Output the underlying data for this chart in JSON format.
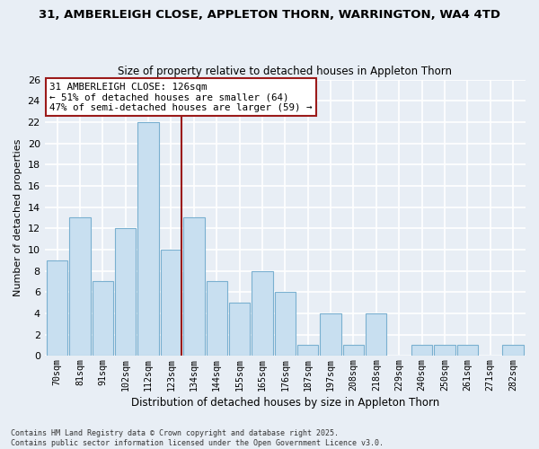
{
  "title1": "31, AMBERLEIGH CLOSE, APPLETON THORN, WARRINGTON, WA4 4TD",
  "title2": "Size of property relative to detached houses in Appleton Thorn",
  "xlabel": "Distribution of detached houses by size in Appleton Thorn",
  "ylabel": "Number of detached properties",
  "bar_color": "#c8dff0",
  "bar_edge_color": "#7ab0d0",
  "categories": [
    "70sqm",
    "81sqm",
    "91sqm",
    "102sqm",
    "112sqm",
    "123sqm",
    "134sqm",
    "144sqm",
    "155sqm",
    "165sqm",
    "176sqm",
    "187sqm",
    "197sqm",
    "208sqm",
    "218sqm",
    "229sqm",
    "240sqm",
    "250sqm",
    "261sqm",
    "271sqm",
    "282sqm"
  ],
  "values": [
    9,
    13,
    7,
    12,
    22,
    10,
    13,
    7,
    5,
    8,
    6,
    1,
    4,
    1,
    4,
    0,
    1,
    1,
    1,
    0,
    1
  ],
  "ylim": [
    0,
    26
  ],
  "yticks": [
    0,
    2,
    4,
    6,
    8,
    10,
    12,
    14,
    16,
    18,
    20,
    22,
    24,
    26
  ],
  "vline_x_index": 5,
  "vline_color": "#9b1a1a",
  "annotation_title": "31 AMBERLEIGH CLOSE: 126sqm",
  "annotation_line1": "← 51% of detached houses are smaller (64)",
  "annotation_line2": "47% of semi-detached houses are larger (59) →",
  "annotation_box_color": "#ffffff",
  "annotation_box_edge": "#9b1a1a",
  "footer1": "Contains HM Land Registry data © Crown copyright and database right 2025.",
  "footer2": "Contains public sector information licensed under the Open Government Licence v3.0.",
  "bg_color": "#e8eef5",
  "plot_bg_color": "#e8eef5",
  "grid_color": "#ffffff"
}
